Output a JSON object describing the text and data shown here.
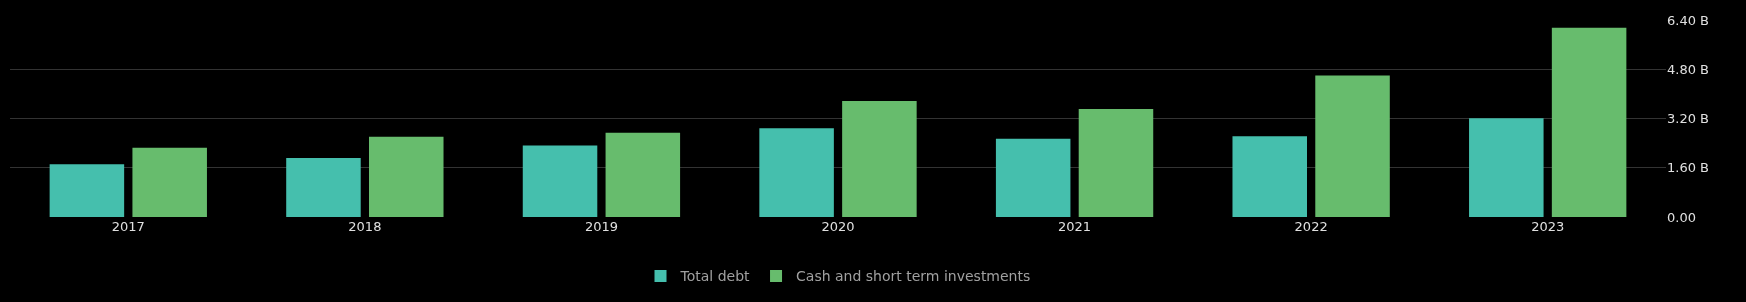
{
  "chart_data": {
    "type": "bar",
    "categories": [
      "2017",
      "2018",
      "2019",
      "2020",
      "2021",
      "2022",
      "2023"
    ],
    "series": [
      {
        "name": "Total debt",
        "color": "#45bfad",
        "values": [
          1.71,
          1.92,
          2.32,
          2.88,
          2.54,
          2.62,
          3.21
        ]
      },
      {
        "name": "Cash and short term investments",
        "color": "#67bc6d",
        "values": [
          2.25,
          2.61,
          2.74,
          3.77,
          3.51,
          4.6,
          6.15
        ]
      }
    ],
    "ylim": [
      0,
      6.4
    ],
    "yticks": [
      {
        "value": 0,
        "label": "0.00"
      },
      {
        "value": 1.6,
        "label": "1.60 B"
      },
      {
        "value": 3.2,
        "label": "3.20 B"
      },
      {
        "value": 4.8,
        "label": "4.80 B"
      },
      {
        "value": 6.4,
        "label": "6.40 B"
      }
    ],
    "grid": "y",
    "legend": "bottom"
  }
}
